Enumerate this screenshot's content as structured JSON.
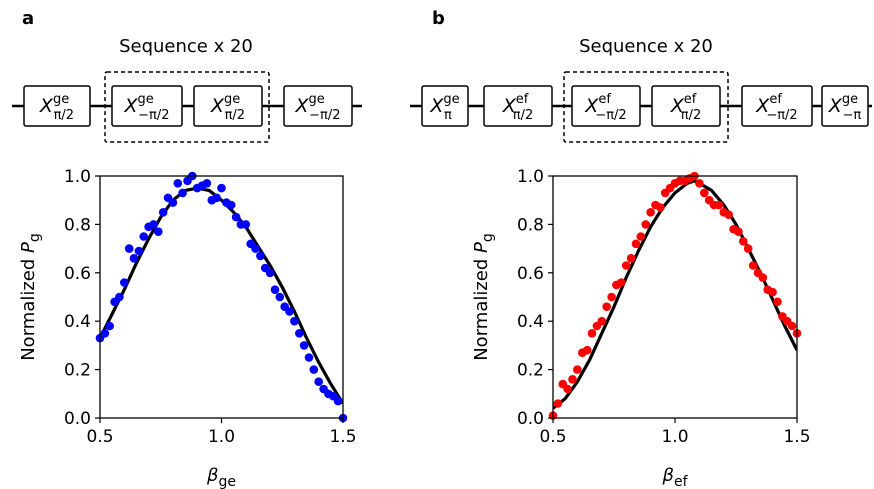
{
  "panels": [
    {
      "letter": "a",
      "sequence_label": "Sequence x 20",
      "gates": [
        {
          "sup": "ge",
          "sub": "π/2",
          "in_loop": false
        },
        {
          "sup": "ge",
          "sub": "−π/2",
          "in_loop": true
        },
        {
          "sup": "ge",
          "sub": "π/2",
          "in_loop": true
        },
        {
          "sup": "ge",
          "sub": "−π/2",
          "in_loop": false
        }
      ],
      "gate_symbol": "X"
    },
    {
      "letter": "b",
      "sequence_label": "Sequence x 20",
      "gates": [
        {
          "sup": "ge",
          "sub": "π",
          "in_loop": false
        },
        {
          "sup": "ef",
          "sub": "π/2",
          "in_loop": false
        },
        {
          "sup": "ef",
          "sub": "−π/2",
          "in_loop": true
        },
        {
          "sup": "ef",
          "sub": "π/2",
          "in_loop": true
        },
        {
          "sup": "ef",
          "sub": "−π/2",
          "in_loop": false
        },
        {
          "sup": "ge",
          "sub": "−π",
          "in_loop": false
        }
      ],
      "gate_symbol": "X"
    }
  ],
  "chart_data": [
    {
      "type": "scatter",
      "title": "",
      "xlabel_main": "β",
      "xlabel_sub": "ge",
      "ylabel_main": "Normalized P",
      "ylabel_sub": "g",
      "xlim": [
        0.5,
        1.5
      ],
      "ylim": [
        0.0,
        1.0
      ],
      "xticks": [
        "0.5",
        "1.0",
        "1.5"
      ],
      "yticks": [
        "0.0",
        "0.2",
        "0.4",
        "0.6",
        "0.8",
        "1.0"
      ],
      "grid": false,
      "point_color": "#0000ff",
      "fit_color": "#000000",
      "fit": {
        "peak_x": 0.9,
        "peak_y": 0.95,
        "curve": [
          [
            0.5,
            0.33
          ],
          [
            0.55,
            0.43
          ],
          [
            0.6,
            0.53
          ],
          [
            0.65,
            0.64
          ],
          [
            0.7,
            0.74
          ],
          [
            0.75,
            0.83
          ],
          [
            0.8,
            0.9
          ],
          [
            0.85,
            0.94
          ],
          [
            0.9,
            0.95
          ],
          [
            0.95,
            0.94
          ],
          [
            1.0,
            0.9
          ],
          [
            1.05,
            0.85
          ],
          [
            1.1,
            0.79
          ],
          [
            1.15,
            0.71
          ],
          [
            1.2,
            0.63
          ],
          [
            1.25,
            0.54
          ],
          [
            1.3,
            0.44
          ],
          [
            1.35,
            0.33
          ],
          [
            1.4,
            0.23
          ],
          [
            1.45,
            0.14
          ],
          [
            1.5,
            0.06
          ]
        ]
      },
      "x": [
        0.5,
        0.52,
        0.54,
        0.56,
        0.58,
        0.6,
        0.62,
        0.64,
        0.66,
        0.68,
        0.7,
        0.72,
        0.74,
        0.76,
        0.78,
        0.8,
        0.82,
        0.84,
        0.86,
        0.88,
        0.9,
        0.92,
        0.94,
        0.96,
        0.98,
        1.0,
        1.02,
        1.04,
        1.06,
        1.08,
        1.1,
        1.12,
        1.14,
        1.16,
        1.18,
        1.2,
        1.22,
        1.24,
        1.26,
        1.28,
        1.3,
        1.32,
        1.34,
        1.36,
        1.38,
        1.4,
        1.42,
        1.44,
        1.46,
        1.48,
        1.5
      ],
      "y": [
        0.33,
        0.35,
        0.38,
        0.48,
        0.5,
        0.56,
        0.7,
        0.66,
        0.69,
        0.75,
        0.79,
        0.8,
        0.77,
        0.85,
        0.91,
        0.89,
        0.97,
        0.93,
        0.98,
        1.0,
        0.95,
        0.96,
        0.97,
        0.9,
        0.91,
        0.95,
        0.89,
        0.88,
        0.83,
        0.8,
        0.8,
        0.72,
        0.7,
        0.67,
        0.62,
        0.6,
        0.53,
        0.5,
        0.46,
        0.44,
        0.4,
        0.35,
        0.3,
        0.25,
        0.2,
        0.15,
        0.12,
        0.1,
        0.09,
        0.07,
        0.0
      ]
    },
    {
      "type": "scatter",
      "title": "",
      "xlabel_main": "β",
      "xlabel_sub": "ef",
      "ylabel_main": "Normalized P",
      "ylabel_sub": "g",
      "xlim": [
        0.5,
        1.5
      ],
      "ylim": [
        0.0,
        1.0
      ],
      "xticks": [
        "0.5",
        "1.0",
        "1.5"
      ],
      "yticks": [
        "0.0",
        "0.2",
        "0.4",
        "0.6",
        "0.8",
        "1.0"
      ],
      "grid": false,
      "point_color": "#ff0000",
      "fit_color": "#000000",
      "fit": {
        "peak_x": 1.08,
        "peak_y": 0.98,
        "curve": [
          [
            0.5,
            0.04
          ],
          [
            0.55,
            0.08
          ],
          [
            0.6,
            0.15
          ],
          [
            0.65,
            0.24
          ],
          [
            0.7,
            0.35
          ],
          [
            0.75,
            0.46
          ],
          [
            0.8,
            0.58
          ],
          [
            0.85,
            0.69
          ],
          [
            0.9,
            0.79
          ],
          [
            0.95,
            0.87
          ],
          [
            1.0,
            0.93
          ],
          [
            1.05,
            0.97
          ],
          [
            1.08,
            0.98
          ],
          [
            1.1,
            0.97
          ],
          [
            1.15,
            0.94
          ],
          [
            1.2,
            0.88
          ],
          [
            1.25,
            0.8
          ],
          [
            1.3,
            0.7
          ],
          [
            1.35,
            0.6
          ],
          [
            1.4,
            0.49
          ],
          [
            1.45,
            0.38
          ],
          [
            1.5,
            0.28
          ]
        ]
      },
      "x": [
        0.5,
        0.52,
        0.54,
        0.56,
        0.58,
        0.6,
        0.62,
        0.64,
        0.66,
        0.68,
        0.7,
        0.72,
        0.74,
        0.76,
        0.78,
        0.8,
        0.82,
        0.84,
        0.86,
        0.88,
        0.9,
        0.92,
        0.94,
        0.96,
        0.98,
        1.0,
        1.02,
        1.04,
        1.06,
        1.08,
        1.1,
        1.12,
        1.14,
        1.16,
        1.18,
        1.2,
        1.22,
        1.24,
        1.26,
        1.28,
        1.3,
        1.32,
        1.34,
        1.36,
        1.38,
        1.4,
        1.42,
        1.44,
        1.46,
        1.48,
        1.5
      ],
      "y": [
        0.01,
        0.06,
        0.14,
        0.12,
        0.16,
        0.2,
        0.27,
        0.28,
        0.35,
        0.38,
        0.4,
        0.46,
        0.5,
        0.55,
        0.56,
        0.63,
        0.66,
        0.72,
        0.75,
        0.8,
        0.85,
        0.88,
        0.87,
        0.93,
        0.95,
        0.97,
        0.98,
        0.98,
        0.99,
        1.0,
        0.97,
        0.93,
        0.9,
        0.88,
        0.88,
        0.85,
        0.84,
        0.78,
        0.77,
        0.73,
        0.7,
        0.63,
        0.6,
        0.58,
        0.53,
        0.52,
        0.48,
        0.42,
        0.4,
        0.38,
        0.35
      ]
    }
  ]
}
